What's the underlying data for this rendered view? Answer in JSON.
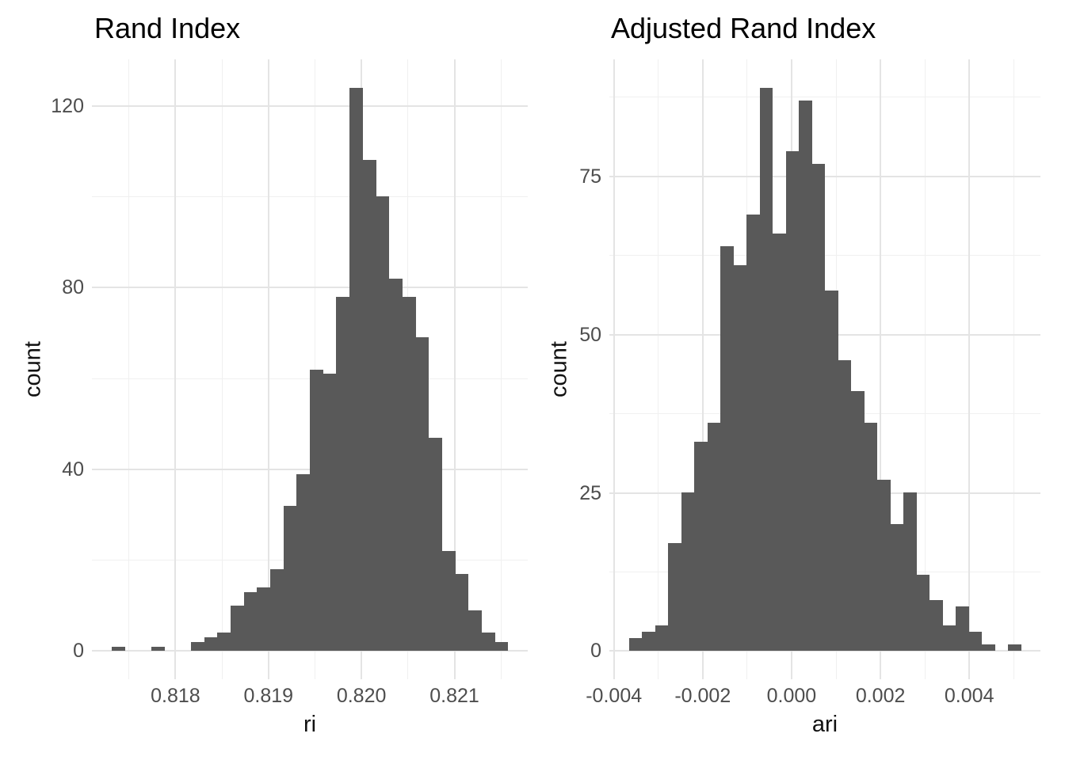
{
  "figure": {
    "background": "#FFFFFF",
    "bar_color": "#595959",
    "grid_major_color": "#E4E4E4",
    "grid_minor_color": "#F0F0F0",
    "tick_label_color": "#4D4D4D",
    "title_color": "#000000"
  },
  "chart_data": [
    {
      "type": "bar",
      "subtype": "histogram",
      "title": "Rand Index",
      "xlabel": "ri",
      "ylabel": "count",
      "bin_start": 0.817315,
      "bin_width": 0.000142,
      "counts": [
        1,
        0,
        0,
        1,
        0,
        0,
        2,
        3,
        4,
        10,
        13,
        14,
        18,
        32,
        39,
        62,
        61,
        78,
        124,
        108,
        100,
        82,
        78,
        69,
        47,
        22,
        17,
        9,
        4,
        2
      ],
      "total_n": 1000,
      "x_ticks": {
        "values": [
          0.818,
          0.819,
          0.82,
          0.821
        ],
        "labels": [
          "0.818",
          "0.819",
          "0.820",
          "0.821"
        ]
      },
      "x_minor": [
        0.8175,
        0.8185,
        0.8195,
        0.8205,
        0.8215
      ],
      "y_ticks": {
        "values": [
          0,
          40,
          80,
          120
        ],
        "labels": [
          "0",
          "40",
          "80",
          "120"
        ]
      },
      "y_minor": [
        20,
        60,
        100
      ],
      "x_domain": [
        0.817102,
        0.821788
      ],
      "y_domain": [
        -6.2,
        130.2
      ],
      "grid": true,
      "legend": false
    },
    {
      "type": "bar",
      "subtype": "histogram",
      "title": "Adjusted Rand Index",
      "xlabel": "ari",
      "ylabel": "count",
      "bin_start": -0.00366,
      "bin_width": 0.000294,
      "counts": [
        2,
        3,
        4,
        17,
        25,
        33,
        36,
        64,
        61,
        69,
        89,
        66,
        79,
        87,
        77,
        57,
        46,
        41,
        36,
        27,
        20,
        25,
        12,
        8,
        4,
        7,
        3,
        1,
        0,
        1
      ],
      "total_n": 1000,
      "x_ticks": {
        "values": [
          -0.004,
          -0.002,
          0.0,
          0.002,
          0.004
        ],
        "labels": [
          "-0.004",
          "-0.002",
          "0.000",
          "0.002",
          "0.004"
        ]
      },
      "x_minor": [
        -0.003,
        -0.001,
        0.001,
        0.003,
        0.005
      ],
      "y_ticks": {
        "values": [
          0,
          25,
          50,
          75
        ],
        "labels": [
          "0",
          "25",
          "50",
          "75"
        ]
      },
      "y_minor": [
        12.5,
        37.5,
        62.5,
        87.5
      ],
      "x_domain": [
        -0.004101,
        0.005601
      ],
      "y_domain": [
        -4.45,
        93.45
      ],
      "grid": true,
      "legend": false
    }
  ]
}
